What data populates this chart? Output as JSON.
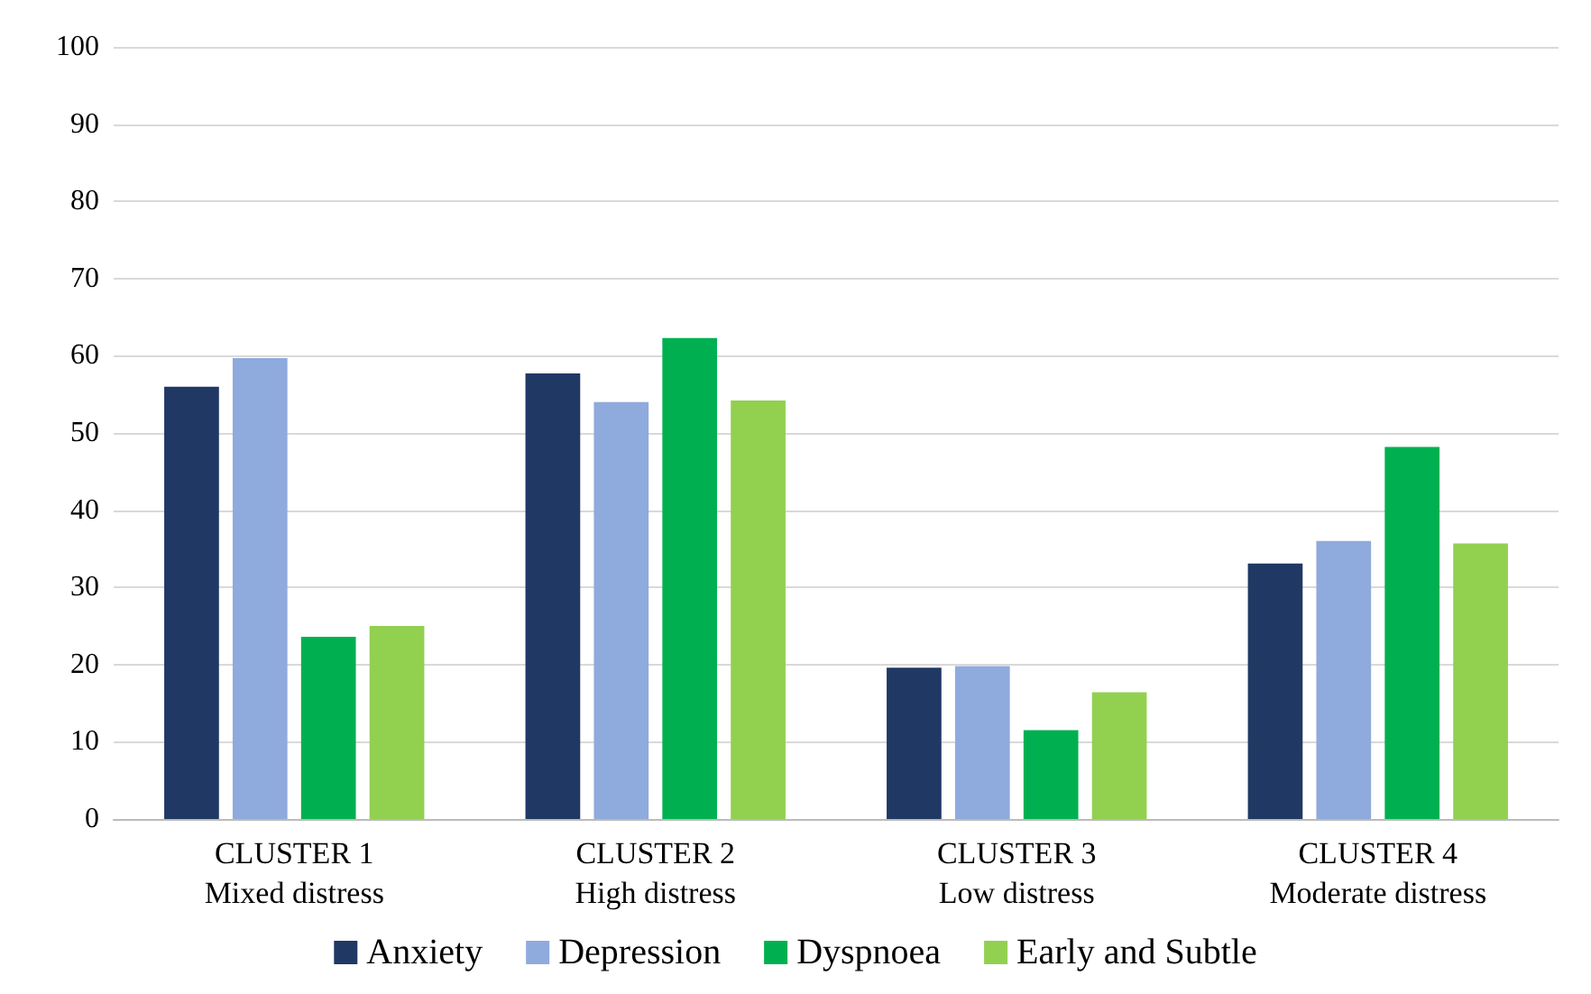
{
  "chart_data": {
    "type": "bar",
    "categories": [
      "CLUSTER 1\nMixed distress",
      "CLUSTER 2\nHigh distress",
      "CLUSTER 3\nLow distress",
      "CLUSTER 4\nModerate distress"
    ],
    "series": [
      {
        "name": "Anxiety",
        "color": "#203864",
        "values": [
          56,
          57.7,
          19.6,
          33.1
        ]
      },
      {
        "name": "Depression",
        "color": "#8faadc",
        "values": [
          59.7,
          54,
          19.8,
          36
        ]
      },
      {
        "name": "Dyspnoea",
        "color": "#00b050",
        "values": [
          23.6,
          62.3,
          11.5,
          48.2
        ]
      },
      {
        "name": "Early and Subtle",
        "color": "#92d050",
        "values": [
          25,
          54.2,
          16.4,
          35.7
        ]
      }
    ],
    "ylim": [
      0,
      100
    ],
    "yticks": [
      0,
      10,
      20,
      30,
      40,
      50,
      60,
      70,
      80,
      90,
      100
    ],
    "grid": "y",
    "legend": "bottom"
  }
}
